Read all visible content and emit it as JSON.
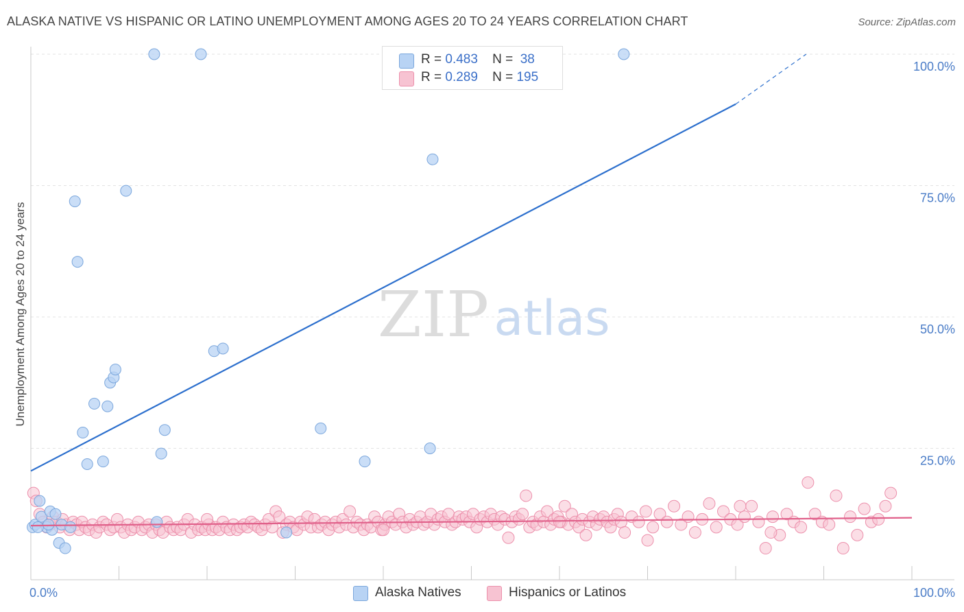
{
  "title": "ALASKA NATIVE VS HISPANIC OR LATINO UNEMPLOYMENT AMONG AGES 20 TO 24 YEARS CORRELATION CHART",
  "source": "Source: ZipAtlas.com",
  "watermark": {
    "zip": "ZIP",
    "atlas": "atlas"
  },
  "colors": {
    "blue_fill": "#b8d3f4",
    "blue_stroke": "#7aa6dc",
    "blue_line": "#2c6fcd",
    "pink_fill": "#f7c3d2",
    "pink_stroke": "#ec8fab",
    "pink_line": "#e0608a",
    "grid": "#e3e3e3",
    "axis_text": "#4a7cc7"
  },
  "legend": {
    "r_label": "R =",
    "n_label": "N =",
    "rows": [
      {
        "r": "0.483",
        "n": "38"
      },
      {
        "r": "0.289",
        "n": "195"
      }
    ]
  },
  "bottom_legend": [
    "Alaska Natives",
    "Hispanics or Latinos"
  ],
  "chart_data": {
    "type": "scatter",
    "xlabel": "",
    "ylabel": "Unemployment Among Ages 20 to 24 years",
    "xlim": [
      0,
      100
    ],
    "ylim": [
      0,
      100
    ],
    "x_tick_labels": [
      "0.0%",
      "100.0%"
    ],
    "y_ticks": [
      25,
      50,
      75,
      100
    ],
    "y_tick_labels": [
      "25.0%",
      "50.0%",
      "75.0%",
      "100.0%"
    ],
    "series": [
      {
        "name": "Alaska Natives",
        "R": 0.483,
        "N": 38,
        "trend": {
          "x0": 0,
          "y0": 20.7,
          "x1": 80,
          "y1": 90.5,
          "dash_to_x": 88,
          "dash_to_y": 100
        },
        "points": [
          [
            0.2,
            10.0
          ],
          [
            0.5,
            10.5
          ],
          [
            1.0,
            15.0
          ],
          [
            1.2,
            12.0
          ],
          [
            1.8,
            10.0
          ],
          [
            2.2,
            13.0
          ],
          [
            2.4,
            9.5
          ],
          [
            2.8,
            12.5
          ],
          [
            3.5,
            10.5
          ],
          [
            3.2,
            7.0
          ],
          [
            3.9,
            6.0
          ],
          [
            4.5,
            10.0
          ],
          [
            5.0,
            72.0
          ],
          [
            5.3,
            60.5
          ],
          [
            5.9,
            28.0
          ],
          [
            6.4,
            22.0
          ],
          [
            7.2,
            33.5
          ],
          [
            8.2,
            22.5
          ],
          [
            8.7,
            33.0
          ],
          [
            9.0,
            37.5
          ],
          [
            9.4,
            38.5
          ],
          [
            9.6,
            40.0
          ],
          [
            10.8,
            74.0
          ],
          [
            14.0,
            100.0
          ],
          [
            14.3,
            11.0
          ],
          [
            14.8,
            24.0
          ],
          [
            15.2,
            28.5
          ],
          [
            19.3,
            100.0
          ],
          [
            20.8,
            43.5
          ],
          [
            21.8,
            44.0
          ],
          [
            29.0,
            9.0
          ],
          [
            32.9,
            28.8
          ],
          [
            37.9,
            22.5
          ],
          [
            45.3,
            25.0
          ],
          [
            45.6,
            80.0
          ],
          [
            67.3,
            100.0
          ],
          [
            0.8,
            10.0
          ],
          [
            2.0,
            10.5
          ]
        ]
      },
      {
        "name": "Hispanics or Latinos",
        "R": 0.289,
        "N": 195,
        "trend": {
          "x0": 0,
          "y0": 10.3,
          "x1": 100,
          "y1": 11.8
        },
        "points": [
          [
            0.3,
            16.5
          ],
          [
            0.6,
            15.0
          ],
          [
            1.0,
            12.5
          ],
          [
            1.4,
            11.0
          ],
          [
            1.8,
            10.0
          ],
          [
            2.2,
            10.5
          ],
          [
            2.5,
            12.0
          ],
          [
            2.9,
            11.0
          ],
          [
            3.3,
            10.0
          ],
          [
            3.6,
            11.5
          ],
          [
            4.0,
            10.5
          ],
          [
            4.4,
            9.5
          ],
          [
            4.8,
            11.0
          ],
          [
            5.2,
            10.5
          ],
          [
            5.5,
            9.5
          ],
          [
            5.8,
            11.0
          ],
          [
            6.2,
            10.0
          ],
          [
            6.6,
            9.5
          ],
          [
            7.0,
            10.5
          ],
          [
            7.4,
            9.0
          ],
          [
            7.8,
            10.0
          ],
          [
            8.2,
            11.0
          ],
          [
            8.6,
            10.5
          ],
          [
            9.0,
            9.5
          ],
          [
            9.4,
            10.0
          ],
          [
            9.8,
            11.5
          ],
          [
            10.2,
            10.0
          ],
          [
            10.6,
            9.0
          ],
          [
            11.0,
            10.5
          ],
          [
            11.4,
            9.5
          ],
          [
            11.8,
            10.0
          ],
          [
            12.2,
            11.0
          ],
          [
            12.6,
            9.5
          ],
          [
            13.0,
            10.0
          ],
          [
            13.4,
            10.5
          ],
          [
            13.8,
            9.0
          ],
          [
            14.2,
            10.5
          ],
          [
            14.6,
            9.5
          ],
          [
            15.0,
            9.0
          ],
          [
            15.4,
            11.0
          ],
          [
            15.8,
            10.0
          ],
          [
            16.2,
            9.5
          ],
          [
            16.6,
            10.0
          ],
          [
            17.0,
            9.5
          ],
          [
            17.4,
            10.5
          ],
          [
            17.8,
            11.5
          ],
          [
            18.2,
            9.0
          ],
          [
            18.6,
            10.5
          ],
          [
            19.0,
            9.5
          ],
          [
            19.4,
            10.0
          ],
          [
            19.8,
            9.5
          ],
          [
            20.2,
            10.5
          ],
          [
            20.6,
            9.5
          ],
          [
            21.0,
            10.0
          ],
          [
            21.4,
            9.5
          ],
          [
            21.8,
            11.0
          ],
          [
            22.2,
            10.0
          ],
          [
            22.6,
            9.5
          ],
          [
            23.0,
            10.5
          ],
          [
            23.4,
            9.5
          ],
          [
            23.8,
            10.0
          ],
          [
            24.2,
            10.5
          ],
          [
            24.6,
            10.0
          ],
          [
            25.0,
            11.0
          ],
          [
            25.4,
            10.5
          ],
          [
            25.8,
            10.0
          ],
          [
            26.2,
            9.5
          ],
          [
            26.6,
            10.5
          ],
          [
            27.0,
            11.5
          ],
          [
            27.4,
            10.0
          ],
          [
            27.8,
            13.0
          ],
          [
            28.2,
            12.0
          ],
          [
            28.6,
            9.0
          ],
          [
            29.0,
            10.5
          ],
          [
            29.4,
            11.0
          ],
          [
            29.8,
            10.0
          ],
          [
            30.2,
            9.5
          ],
          [
            30.6,
            11.0
          ],
          [
            31.0,
            10.5
          ],
          [
            31.4,
            12.0
          ],
          [
            31.8,
            10.0
          ],
          [
            32.2,
            11.5
          ],
          [
            32.6,
            10.0
          ],
          [
            33.0,
            10.5
          ],
          [
            33.4,
            11.0
          ],
          [
            33.8,
            9.5
          ],
          [
            34.2,
            10.5
          ],
          [
            34.6,
            11.0
          ],
          [
            35.0,
            10.0
          ],
          [
            35.4,
            11.5
          ],
          [
            35.8,
            10.5
          ],
          [
            36.2,
            13.0
          ],
          [
            36.6,
            10.0
          ],
          [
            37.0,
            11.0
          ],
          [
            37.4,
            10.5
          ],
          [
            37.8,
            9.5
          ],
          [
            38.2,
            10.5
          ],
          [
            38.6,
            10.0
          ],
          [
            39.0,
            12.0
          ],
          [
            39.4,
            11.0
          ],
          [
            39.8,
            9.5
          ],
          [
            40.2,
            10.5
          ],
          [
            40.6,
            12.0
          ],
          [
            41.0,
            11.0
          ],
          [
            41.4,
            10.5
          ],
          [
            41.8,
            12.5
          ],
          [
            42.2,
            11.0
          ],
          [
            42.6,
            10.0
          ],
          [
            43.0,
            11.5
          ],
          [
            43.4,
            10.5
          ],
          [
            43.8,
            11.0
          ],
          [
            44.2,
            12.0
          ],
          [
            44.6,
            10.5
          ],
          [
            45.0,
            11.0
          ],
          [
            45.4,
            12.5
          ],
          [
            45.8,
            10.5
          ],
          [
            46.2,
            11.5
          ],
          [
            46.6,
            12.0
          ],
          [
            47.0,
            11.0
          ],
          [
            47.4,
            12.5
          ],
          [
            47.8,
            10.5
          ],
          [
            48.2,
            11.0
          ],
          [
            48.6,
            12.0
          ],
          [
            49.0,
            11.5
          ],
          [
            49.4,
            12.0
          ],
          [
            49.8,
            11.0
          ],
          [
            50.2,
            12.5
          ],
          [
            50.6,
            10.0
          ],
          [
            51.0,
            11.5
          ],
          [
            51.4,
            12.0
          ],
          [
            51.8,
            11.0
          ],
          [
            52.2,
            12.5
          ],
          [
            52.6,
            11.5
          ],
          [
            53.0,
            10.5
          ],
          [
            53.4,
            12.0
          ],
          [
            53.8,
            11.5
          ],
          [
            54.2,
            8.0
          ],
          [
            54.6,
            11.0
          ],
          [
            55.0,
            12.0
          ],
          [
            55.4,
            11.5
          ],
          [
            55.8,
            12.5
          ],
          [
            56.2,
            16.0
          ],
          [
            56.6,
            10.0
          ],
          [
            57.0,
            11.0
          ],
          [
            57.4,
            10.5
          ],
          [
            57.8,
            12.0
          ],
          [
            58.2,
            11.0
          ],
          [
            58.6,
            13.0
          ],
          [
            59.0,
            10.5
          ],
          [
            59.4,
            11.5
          ],
          [
            59.8,
            12.0
          ],
          [
            60.2,
            11.0
          ],
          [
            60.6,
            14.0
          ],
          [
            61.0,
            10.5
          ],
          [
            61.4,
            12.5
          ],
          [
            61.8,
            11.0
          ],
          [
            62.2,
            10.0
          ],
          [
            62.6,
            11.5
          ],
          [
            63.0,
            8.5
          ],
          [
            63.4,
            11.0
          ],
          [
            63.8,
            12.0
          ],
          [
            64.2,
            10.5
          ],
          [
            64.6,
            11.5
          ],
          [
            65.0,
            12.0
          ],
          [
            65.4,
            11.0
          ],
          [
            65.8,
            10.0
          ],
          [
            66.2,
            11.5
          ],
          [
            66.6,
            12.5
          ],
          [
            67.0,
            11.0
          ],
          [
            67.4,
            9.0
          ],
          [
            68.2,
            12.0
          ],
          [
            69.0,
            11.0
          ],
          [
            69.8,
            13.0
          ],
          [
            70.6,
            10.0
          ],
          [
            71.4,
            12.5
          ],
          [
            72.2,
            11.0
          ],
          [
            73.0,
            14.0
          ],
          [
            73.8,
            10.5
          ],
          [
            74.6,
            12.0
          ],
          [
            75.4,
            9.0
          ],
          [
            76.2,
            11.5
          ],
          [
            77.0,
            14.5
          ],
          [
            77.8,
            10.0
          ],
          [
            78.6,
            13.0
          ],
          [
            79.4,
            11.5
          ],
          [
            80.2,
            10.5
          ],
          [
            81.0,
            12.0
          ],
          [
            81.8,
            14.0
          ],
          [
            82.6,
            11.0
          ],
          [
            83.4,
            6.0
          ],
          [
            84.2,
            12.0
          ],
          [
            85.0,
            8.5
          ],
          [
            85.8,
            12.5
          ],
          [
            86.6,
            11.0
          ],
          [
            87.4,
            10.0
          ],
          [
            88.2,
            18.5
          ],
          [
            89.0,
            12.5
          ],
          [
            89.8,
            11.0
          ],
          [
            90.6,
            10.5
          ],
          [
            91.4,
            16.0
          ],
          [
            92.2,
            6.0
          ],
          [
            93.0,
            12.0
          ],
          [
            93.8,
            8.5
          ],
          [
            94.6,
            13.5
          ],
          [
            95.4,
            11.0
          ],
          [
            96.2,
            11.5
          ],
          [
            97.0,
            14.0
          ],
          [
            97.6,
            16.5
          ],
          [
            20.0,
            11.5
          ],
          [
            40.0,
            9.5
          ],
          [
            60.0,
            11.0
          ],
          [
            70.0,
            7.5
          ],
          [
            80.5,
            14.0
          ],
          [
            84.0,
            9.0
          ]
        ]
      }
    ]
  }
}
